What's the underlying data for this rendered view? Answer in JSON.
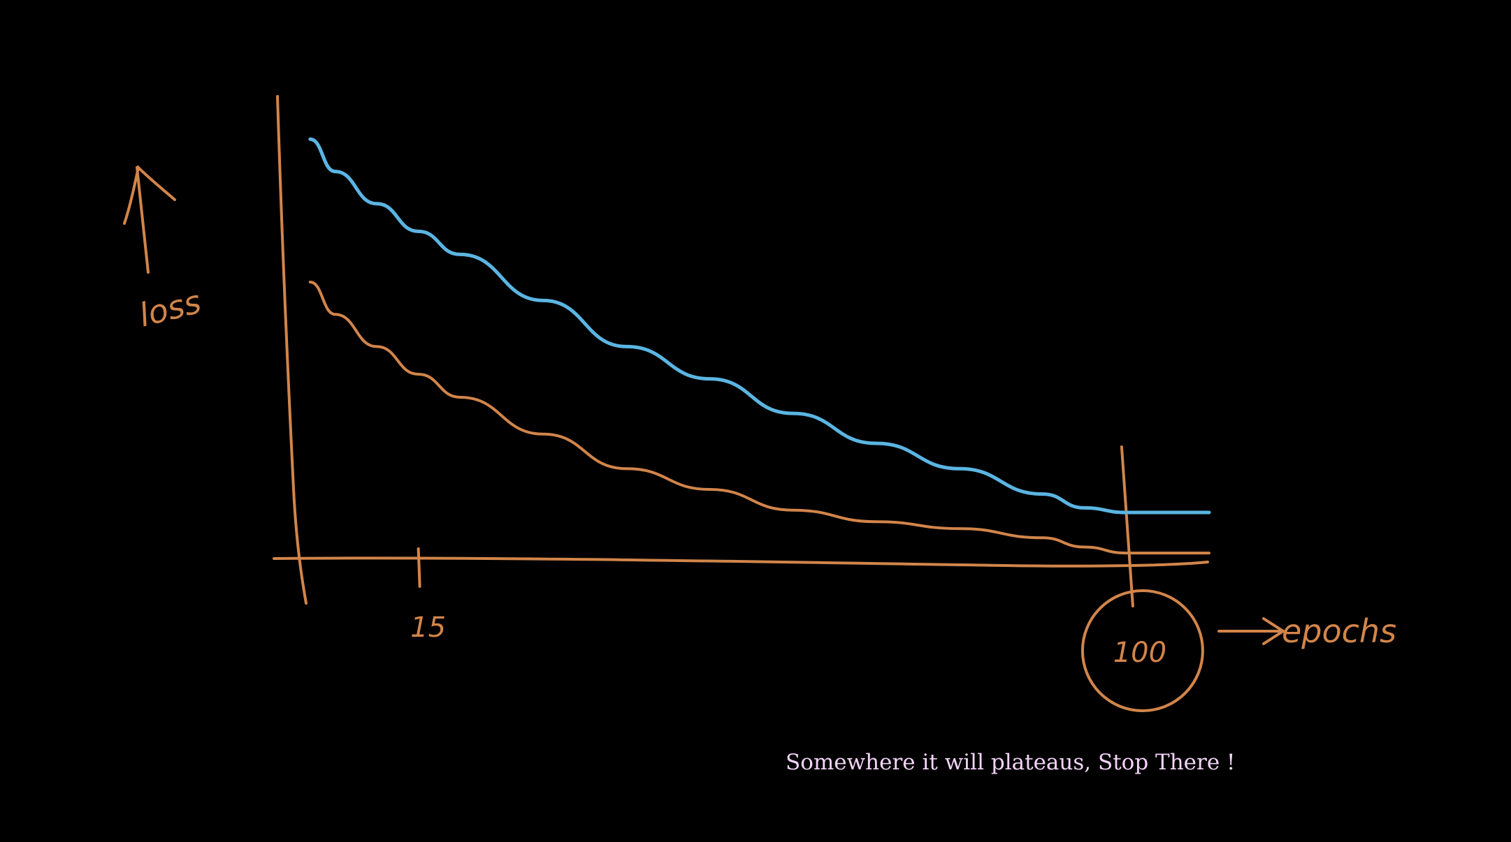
{
  "chart_data": {
    "type": "line",
    "title": "",
    "xlabel": "epochs",
    "ylabel": "loss",
    "x_ticks": [
      "15",
      "100"
    ],
    "highlighted_tick": "100",
    "xlim": [
      0,
      110
    ],
    "ylim": [
      0,
      10
    ],
    "grid": false,
    "legend": "none",
    "series": [
      {
        "color": "#5bb5e2",
        "x": [
          2,
          5,
          10,
          15,
          20,
          30,
          40,
          50,
          60,
          70,
          80,
          90,
          95,
          100,
          105,
          110
        ],
        "y": [
          9.1,
          8.4,
          7.7,
          7.1,
          6.6,
          5.6,
          4.6,
          3.9,
          3.15,
          2.5,
          1.95,
          1.4,
          1.1,
          1.0,
          1.0,
          1.0
        ]
      },
      {
        "color": "#d2854a",
        "x": [
          2,
          5,
          10,
          15,
          20,
          30,
          40,
          50,
          60,
          70,
          80,
          90,
          95,
          100,
          105,
          110
        ],
        "y": [
          6.0,
          5.3,
          4.6,
          4.0,
          3.5,
          2.7,
          1.95,
          1.5,
          1.05,
          0.8,
          0.65,
          0.45,
          0.25,
          0.12,
          0.12,
          0.12
        ]
      }
    ]
  },
  "annotation": {
    "note": "Somewhere it will plateaus, Stop There  !"
  },
  "colors": {
    "background": "#000000",
    "ink_orange": "#d2854a",
    "ink_blue": "#5bb5e2",
    "note_text": "#f2d4f7"
  }
}
